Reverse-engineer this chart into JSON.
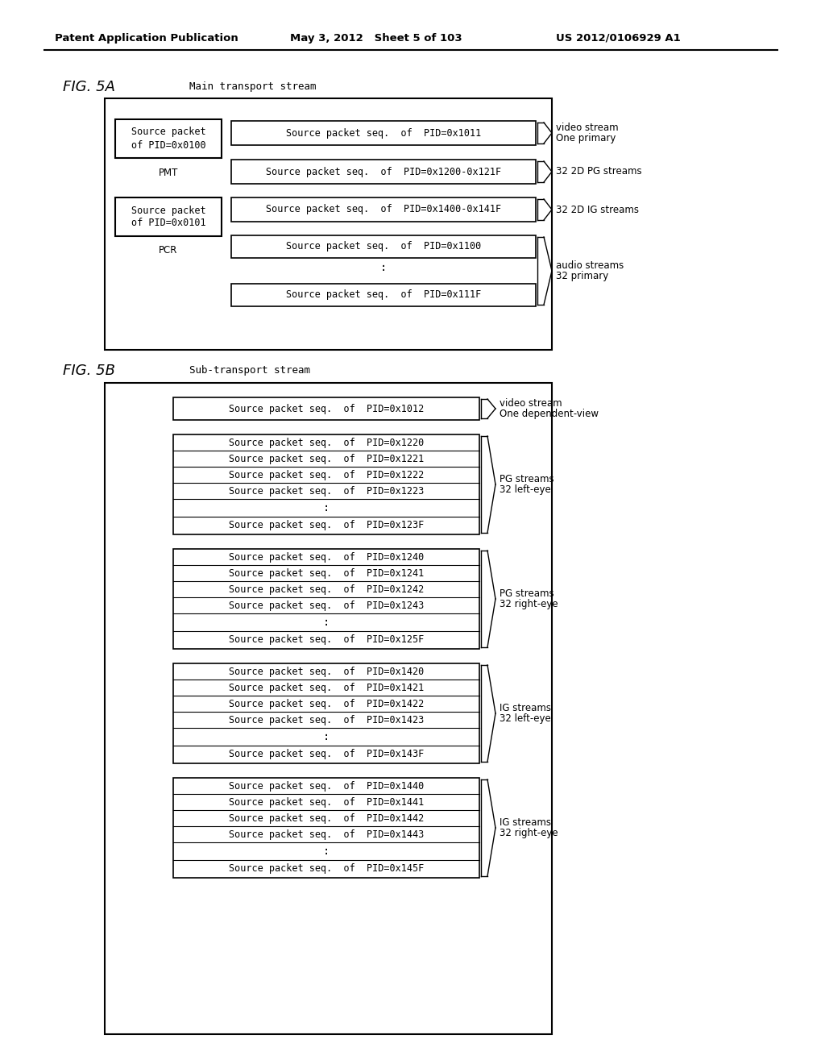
{
  "bg_color": "#ffffff",
  "header_left": "Patent Application Publication",
  "header_mid": "May 3, 2012   Sheet 5 of 103",
  "header_right": "US 2012/0106929 A1",
  "fig5a_label": "FIG. 5A",
  "fig5a_title": "Main transport stream",
  "fig5b_label": "FIG. 5B",
  "fig5b_title": "Sub-transport stream"
}
